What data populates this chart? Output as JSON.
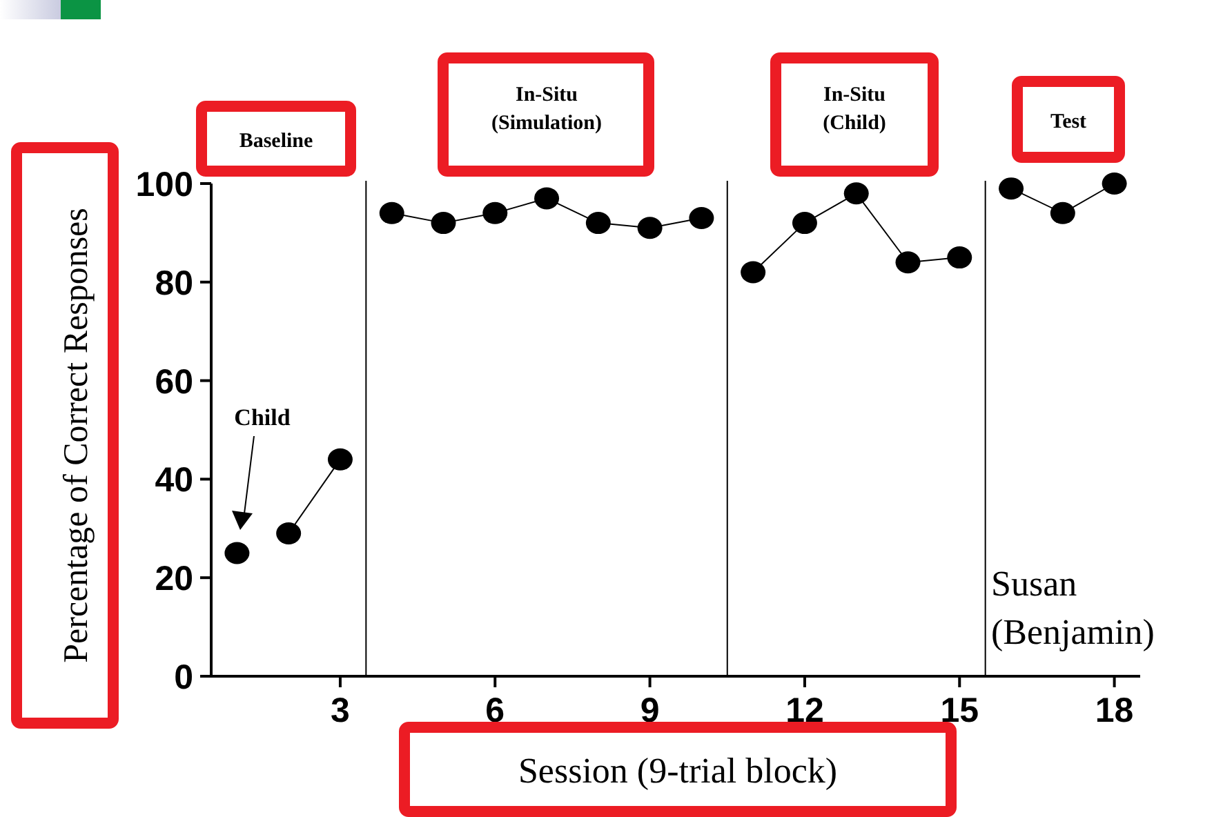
{
  "chart_data": {
    "type": "line",
    "xlabel": "Session (9-trial block)",
    "ylabel": "Percentage of Correct Responses",
    "xlim": [
      0.5,
      18.5
    ],
    "xticks": [
      3,
      6,
      9,
      12,
      15,
      18
    ],
    "ylim": [
      0,
      100
    ],
    "yticks": [
      0,
      20,
      40,
      60,
      80,
      100
    ],
    "grid": false,
    "marker": "circle",
    "line_style": "solid",
    "series": [
      {
        "color": "#000000",
        "x": [
          1
        ],
        "values": [
          25
        ]
      },
      {
        "color": "#000000",
        "x": [
          2,
          3
        ],
        "values": [
          29,
          44
        ]
      },
      {
        "color": "#000000",
        "x": [
          4,
          5,
          6,
          7,
          8,
          9,
          10
        ],
        "values": [
          94,
          92,
          94,
          97,
          92,
          91,
          93
        ]
      },
      {
        "color": "#000000",
        "x": [
          11,
          12,
          13,
          14,
          15
        ],
        "values": [
          82,
          92,
          98,
          84,
          85
        ]
      },
      {
        "color": "#000000",
        "x": [
          16,
          17,
          18
        ],
        "values": [
          99,
          94,
          100
        ]
      }
    ],
    "ref_lines": [
      {
        "axis": "x",
        "value": 3.5,
        "color": "#000000"
      },
      {
        "axis": "x",
        "value": 10.5,
        "color": "#000000"
      },
      {
        "axis": "x",
        "value": 15.5,
        "color": "#000000"
      }
    ],
    "annotations": [
      "Baseline",
      "In-Situ (Simulation)",
      "In-Situ (Child)",
      "Test",
      "Susan (Benjamin)",
      "Child"
    ]
  }
}
